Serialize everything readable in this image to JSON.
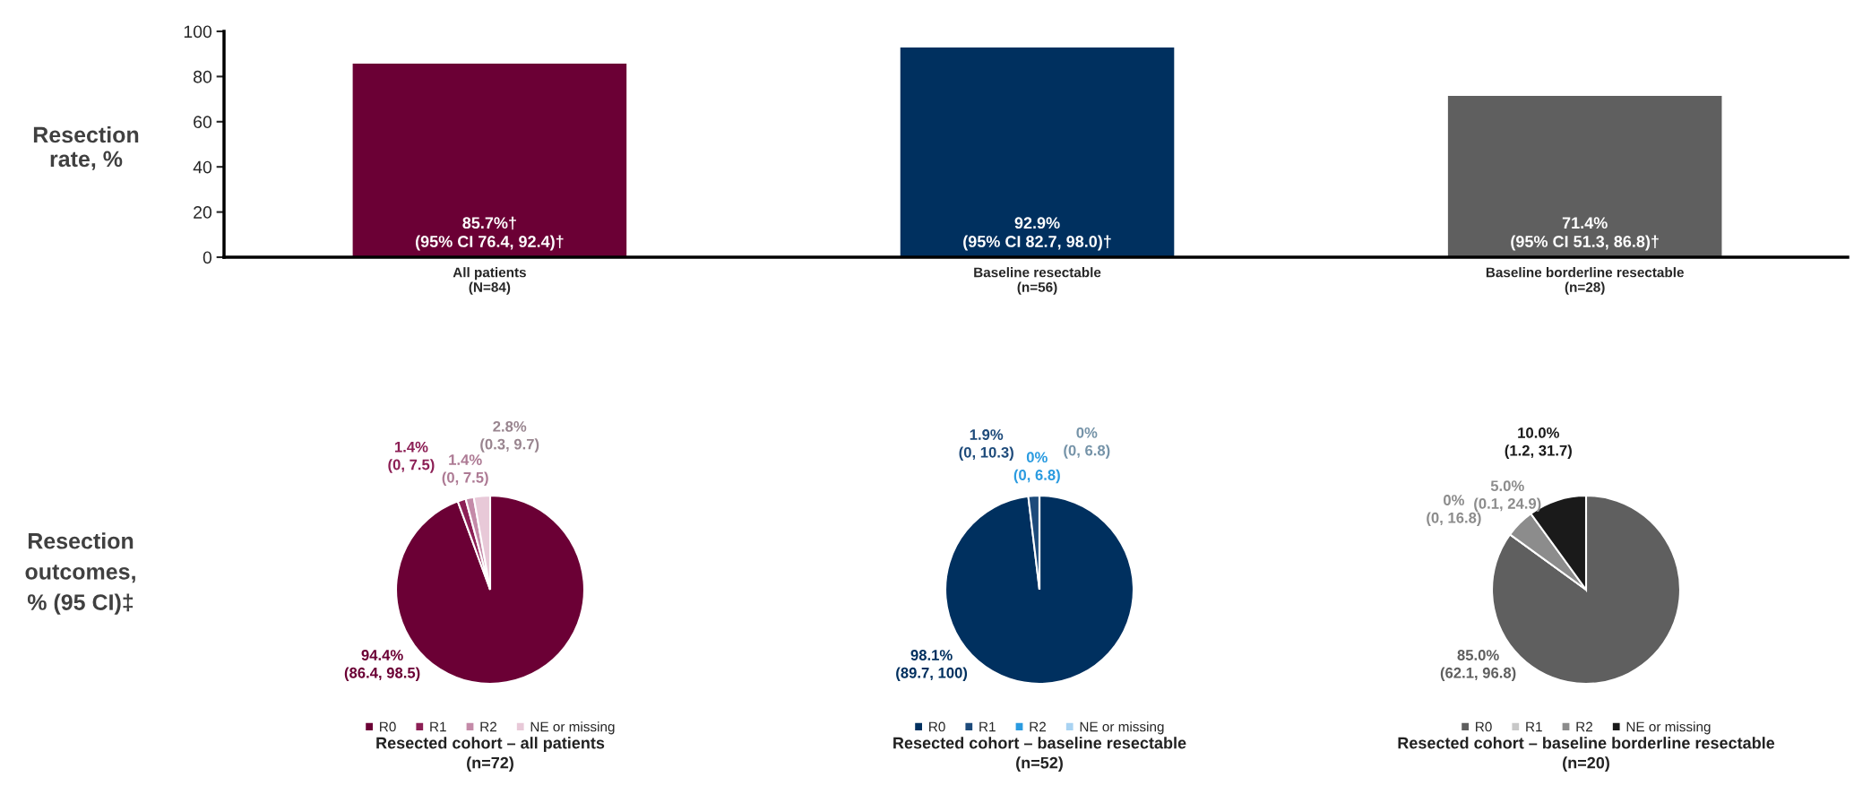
{
  "chart_data": [
    {
      "type": "bar",
      "categories": [
        "All patients\n(N=84)",
        "Baseline resectable\n(n=56)",
        "Baseline borderline resectable\n(n=28)"
      ],
      "values": [
        85.7,
        92.9,
        71.4
      ],
      "colors": [
        "#6b0035",
        "#00305f",
        "#5f5f5f"
      ],
      "value_labels": [
        "85.7%†\n(95% CI 76.4, 92.4)†",
        "92.9%\n(95% CI 82.7, 98.0)†",
        "71.4%\n(95% CI 51.3, 86.8)†"
      ],
      "ylabel": "Resection\nrate, %",
      "ylim": [
        0,
        100
      ],
      "yticks": [
        0,
        20,
        40,
        60,
        80,
        100
      ]
    },
    {
      "type": "pie",
      "title": "Resected cohort – all patients\n(n=72)",
      "ylabel": "Resection\noutcomes,\n% (95 CI)‡",
      "categories": [
        "R0",
        "R1",
        "R2",
        "NE or missing"
      ],
      "values": [
        94.4,
        1.4,
        1.4,
        2.8
      ],
      "colors": [
        "#6b0035",
        "#8c1f55",
        "#c48aa8",
        "#e8c9d8"
      ],
      "value_labels": [
        "94.4%\n(86.4, 98.5)",
        "1.4%\n(0, 7.5)",
        "1.4%\n(0, 7.5)",
        "2.8%\n(0.3, 9.7)"
      ],
      "legend": "bottom"
    },
    {
      "type": "pie",
      "title": "Resected cohort – baseline resectable\n(n=52)",
      "categories": [
        "R0",
        "R1",
        "R2",
        "NE or missing"
      ],
      "values": [
        98.1,
        1.9,
        0,
        0
      ],
      "colors": [
        "#00305f",
        "#1d4a7a",
        "#2a9be0",
        "#a9d3f2"
      ],
      "value_labels": [
        "98.1%\n(89.7, 100)",
        "1.9%\n(0, 10.3)",
        "0%\n(0, 6.8)",
        "0%\n(0, 6.8)"
      ],
      "legend": "bottom"
    },
    {
      "type": "pie",
      "title": "Resected cohort – baseline borderline resectable\n(n=20)",
      "categories": [
        "R0",
        "R1",
        "R2",
        "NE or missing"
      ],
      "values": [
        85.0,
        0,
        5.0,
        10.0
      ],
      "colors": [
        "#5f5f5f",
        "#c8c8c8",
        "#8c8c8c",
        "#1a1a1a"
      ],
      "value_labels": [
        "85.0%\n(62.1, 96.8)",
        "0%\n(0, 16.8)",
        "5.0%\n(0.1, 24.9)",
        "10.0%\n(1.2, 31.7)"
      ],
      "legend": "bottom"
    }
  ]
}
